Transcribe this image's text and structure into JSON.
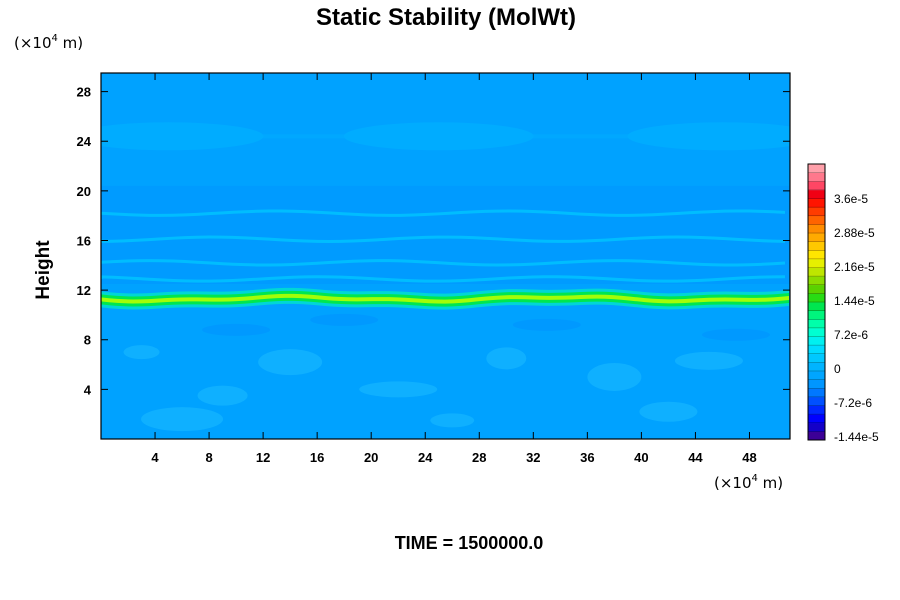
{
  "chart_data": {
    "type": "heatmap",
    "title": "Static Stability (MolWt)",
    "xlabel": "",
    "ylabel": "Height",
    "x_unit": {
      "prefix": "(×10",
      "exp": "4",
      "suffix": " m)"
    },
    "y_unit": {
      "prefix": "(×10",
      "exp": "4",
      "suffix": " m)"
    },
    "xlim": [
      0,
      51
    ],
    "ylim": [
      0,
      29.5
    ],
    "x_ticks": [
      4,
      8,
      12,
      16,
      20,
      24,
      28,
      32,
      36,
      40,
      44,
      48
    ],
    "y_ticks": [
      4,
      8,
      12,
      16,
      20,
      24,
      28
    ],
    "colorbar": {
      "labels": [
        "3.6e-5",
        "2.88e-5",
        "2.16e-5",
        "1.44e-5",
        "7.2e-6",
        "0",
        "-7.2e-6",
        "-1.44e-5"
      ],
      "colors": [
        "#3c0096",
        "#1400c8",
        "#0000ff",
        "#0028ff",
        "#0050ff",
        "#0078ff",
        "#0096ff",
        "#00a5ff",
        "#00b4ff",
        "#00c8ff",
        "#00dcff",
        "#00f0f0",
        "#00ffd2",
        "#00ffaa",
        "#00f57d",
        "#00e650",
        "#28dc14",
        "#5ad200",
        "#8cdc00",
        "#bee600",
        "#e6f000",
        "#ffe600",
        "#ffc800",
        "#ffaa00",
        "#ff8c00",
        "#ff6400",
        "#ff3c00",
        "#ff1400",
        "#f00014",
        "#ff4664",
        "#ff788c",
        "#ffa0aa"
      ]
    },
    "background_color": "#00a2ff",
    "features": [
      {
        "kind": "stable_band",
        "height": 11.3,
        "color": "#00e650",
        "core_color": "#b4ff00"
      },
      {
        "kind": "tropopause_shelf",
        "height": 20.4,
        "color": "#0096ff"
      },
      {
        "kind": "high_layer",
        "height": 24.4,
        "color": "#00acff"
      },
      {
        "kind": "streaks",
        "heights": [
          18.2,
          16.1,
          14.2,
          12.9
        ],
        "color": "#00c8ff"
      }
    ],
    "annotation": "TIME = 1500000.0"
  }
}
